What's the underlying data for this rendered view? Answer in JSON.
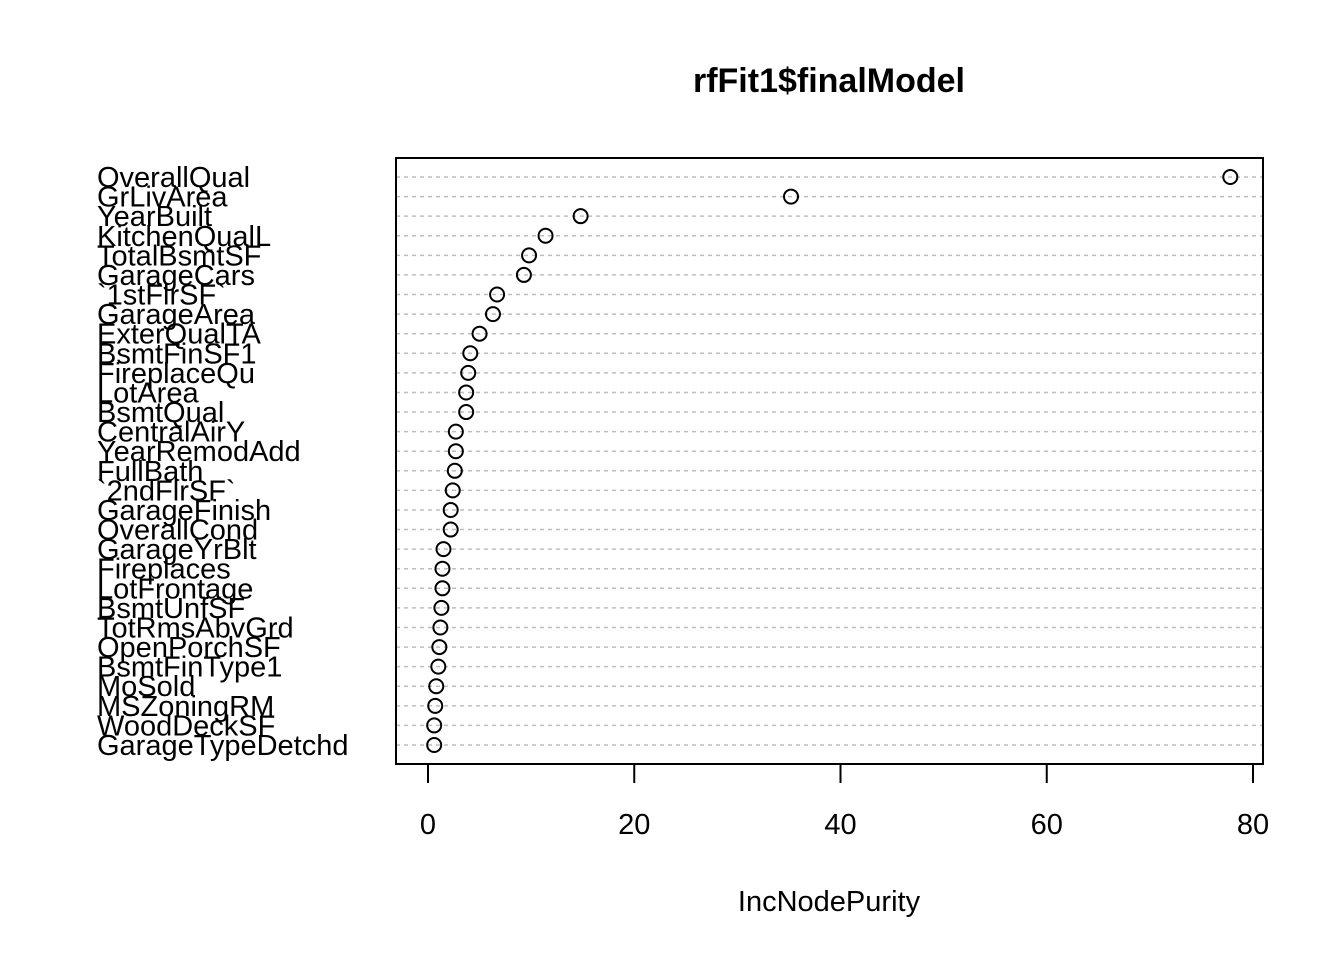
{
  "chart_data": {
    "type": "scatter",
    "subtype": "dotchart",
    "title": "rfFit1$finalModel",
    "xlabel": "IncNodePurity",
    "ylabel": "",
    "xlim": [
      -3,
      81
    ],
    "xticks": [
      0,
      20,
      40,
      60,
      80
    ],
    "grid": "horizontal dashed",
    "categories": [
      "OverallQual",
      "GrLivArea",
      "YearBuilt",
      "KitchenQualL",
      "TotalBsmtSF",
      "GarageCars",
      "`1stFlrSF`",
      "GarageArea",
      "ExterQualTA",
      "BsmtFinSF1",
      "FireplaceQu",
      "LotArea",
      "BsmtQual",
      "CentralAirY",
      "YearRemodAdd",
      "FullBath",
      "`2ndFlrSF`",
      "GarageFinish",
      "OverallCond",
      "GarageYrBlt",
      "Fireplaces",
      "LotFrontage",
      "BsmtUnfSF",
      "TotRmsAbvGrd",
      "OpenPorchSF",
      "BsmtFinType1",
      "MoSold",
      "MSZoningRM",
      "WoodDeckSF",
      "GarageTypeDetchd"
    ],
    "values": [
      77.8,
      35.2,
      14.8,
      11.4,
      9.8,
      9.3,
      6.7,
      6.3,
      5.0,
      4.1,
      3.9,
      3.7,
      3.7,
      2.7,
      2.7,
      2.6,
      2.4,
      2.2,
      2.2,
      1.5,
      1.4,
      1.4,
      1.3,
      1.2,
      1.1,
      1.0,
      0.8,
      0.7,
      0.6,
      0.6
    ]
  }
}
